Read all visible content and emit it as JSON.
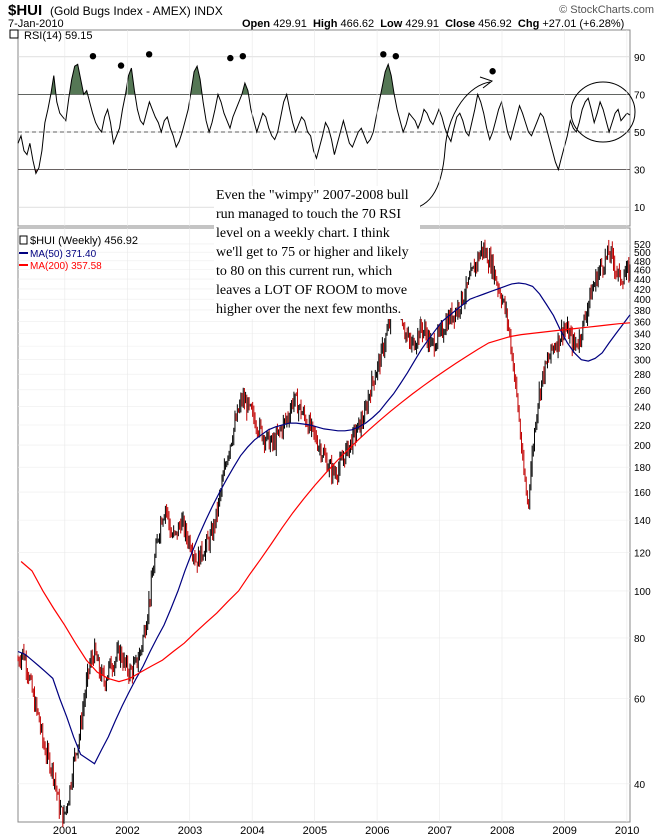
{
  "header": {
    "symbol": "$HUI",
    "symbol_desc": "(Gold Bugs Index - AMEX) INDX",
    "date": "7-Jan-2010",
    "brand": "© StockCharts.com",
    "open_label": "Open",
    "open": "429.91",
    "high_label": "High",
    "high": "466.62",
    "low_label": "Low",
    "low": "429.91",
    "close_label": "Close",
    "close": "456.92",
    "chg_label": "Chg",
    "chg": "+27.01 (+6.28%)"
  },
  "annotation": "Even the \"wimpy\" 2007-2008 bull run managed to touch the 70 RSI level on a weekly chart. I think we'll get to 75 or higher and likely to 80 on this current run, which leaves a LOT OF ROOM to move higher    over the next few months.",
  "colors": {
    "price": "#000000",
    "down_bar": "#c00000",
    "ma50": "#000080",
    "ma200": "#ff0000",
    "rsi_fill": "#557755",
    "rsi_low_fill": "#a05050",
    "grid": "#cccccc"
  },
  "chart_data": [
    {
      "type": "line",
      "panel": "rsi",
      "title": "RSI(14) 59.15",
      "y_ticks": [
        10,
        30,
        50,
        70,
        90
      ],
      "ylim": [
        0,
        100
      ],
      "reference_levels": [
        30,
        50,
        70
      ],
      "x_ticks": [
        "2001",
        "2002",
        "2003",
        "2004",
        "2005",
        "2006",
        "2007",
        "2008",
        "2009",
        "2010"
      ],
      "series": [
        {
          "values": [
            44,
            48,
            40,
            38,
            44,
            35,
            28,
            31,
            40,
            55,
            62,
            70,
            80,
            66,
            60,
            58,
            56,
            68,
            78,
            85,
            86,
            78,
            70,
            72,
            66,
            60,
            55,
            52,
            50,
            58,
            62,
            55,
            44,
            48,
            52,
            62,
            70,
            80,
            84,
            72,
            62,
            56,
            54,
            60,
            66,
            62,
            58,
            55,
            50,
            56,
            58,
            52,
            48,
            42,
            45,
            50,
            56,
            62,
            72,
            82,
            85,
            78,
            66,
            56,
            50,
            55,
            62,
            70,
            66,
            60,
            56,
            52,
            58,
            62,
            66,
            70,
            76,
            72,
            62,
            56,
            50,
            55,
            60,
            58,
            52,
            48,
            46,
            50,
            58,
            66,
            70,
            62,
            55,
            50,
            54,
            58,
            56,
            50,
            48,
            40,
            36,
            42,
            48,
            55,
            52,
            46,
            38,
            44,
            50,
            56,
            50,
            44,
            42,
            46,
            50,
            52,
            48,
            44,
            46,
            50,
            58,
            66,
            74,
            82,
            86,
            80,
            70,
            62,
            56,
            50,
            54,
            60,
            58,
            56,
            52,
            56,
            62,
            60,
            56,
            54,
            58,
            62,
            58,
            52,
            48,
            45,
            52,
            58,
            60,
            56,
            50,
            48,
            55,
            62,
            70,
            66,
            60,
            52,
            46,
            50,
            56,
            62,
            66,
            58,
            50,
            46,
            52,
            58,
            64,
            60,
            55,
            50,
            48,
            52,
            56,
            60,
            58,
            52,
            46,
            40,
            34,
            30,
            36,
            42,
            48,
            56,
            52,
            50,
            55,
            62,
            66,
            68,
            62,
            55,
            60,
            66,
            62,
            56,
            50,
            55,
            60,
            62,
            56,
            58,
            60,
            59
          ]
        }
      ],
      "markers": [
        {
          "x": "2001.45",
          "y": 85
        },
        {
          "x": "2001.9",
          "y": 80
        },
        {
          "x": "2002.35",
          "y": 86
        },
        {
          "x": "2003.65",
          "y": 84
        },
        {
          "x": "2003.85",
          "y": 85
        },
        {
          "x": "2006.1",
          "y": 86
        },
        {
          "x": "2006.3",
          "y": 85
        },
        {
          "x": "2007.85",
          "y": 77
        }
      ]
    },
    {
      "type": "line",
      "panel": "price",
      "scale": "log",
      "series": [
        {
          "name": "$HUI (Weekly) 456.92",
          "values": [
            72,
            75,
            68,
            60,
            55,
            48,
            45,
            42,
            36,
            34,
            38,
            45,
            50,
            60,
            70,
            75,
            68,
            65,
            70,
            72,
            75,
            70,
            68,
            70,
            75,
            85,
            100,
            120,
            140,
            150,
            130,
            130,
            140,
            130,
            125,
            115,
            120,
            125,
            130,
            145,
            165,
            190,
            210,
            230,
            250,
            240,
            230,
            220,
            210,
            205,
            200,
            210,
            220,
            230,
            250,
            240,
            230,
            220,
            210,
            200,
            190,
            180,
            175,
            180,
            190,
            200,
            210,
            220,
            230,
            260,
            280,
            300,
            330,
            360,
            390,
            380,
            340,
            320,
            330,
            350,
            340,
            320,
            330,
            340,
            360,
            370,
            380,
            400,
            420,
            450,
            480,
            510,
            490,
            470,
            430,
            400,
            360,
            300,
            240,
            180,
            150,
            200,
            250,
            280,
            300,
            320,
            330,
            350,
            340,
            320,
            330,
            360,
            400,
            430,
            460,
            480,
            500,
            470,
            440,
            450,
            456.92
          ]
        },
        {
          "name": "MA(50) 371.40",
          "values": [
            75,
            74,
            72,
            70,
            68,
            66,
            60,
            55,
            50,
            46,
            45,
            44,
            47,
            50,
            54,
            58,
            62,
            66,
            70,
            75,
            80,
            85,
            92,
            100,
            110,
            120,
            130,
            140,
            150,
            160,
            170,
            180,
            190,
            198,
            205,
            210,
            215,
            218,
            220,
            222,
            222,
            221,
            220,
            218,
            216,
            215,
            214,
            214,
            215,
            218,
            222,
            228,
            235,
            245,
            255,
            268,
            282,
            298,
            315,
            330,
            345,
            360,
            370,
            380,
            390,
            400,
            405,
            410,
            415,
            420,
            425,
            430,
            432,
            430,
            425,
            410,
            390,
            370,
            345,
            325,
            310,
            300,
            298,
            302,
            310,
            325,
            340,
            355,
            371.4
          ]
        },
        {
          "name": "MA(200) 357.58",
          "values": [
            115,
            110,
            100,
            92,
            85,
            78,
            72,
            68,
            66,
            65,
            66,
            68,
            70,
            72,
            75,
            78,
            82,
            86,
            90,
            95,
            100,
            108,
            116,
            125,
            135,
            145,
            155,
            165,
            175,
            185,
            195,
            205,
            215,
            225,
            235,
            245,
            255,
            265,
            275,
            285,
            295,
            305,
            315,
            325,
            330,
            335,
            338,
            340,
            342,
            344,
            346,
            348,
            350,
            352,
            354,
            356,
            357.58
          ]
        }
      ],
      "y_ticks": [
        40,
        60,
        80,
        100,
        120,
        140,
        160,
        180,
        200,
        220,
        240,
        260,
        280,
        300,
        320,
        340,
        360,
        380,
        400,
        420,
        440,
        460,
        480,
        500,
        520
      ],
      "x_ticks": [
        "2001",
        "2002",
        "2003",
        "2004",
        "2005",
        "2006",
        "2007",
        "2008",
        "2009",
        "2010"
      ]
    }
  ]
}
